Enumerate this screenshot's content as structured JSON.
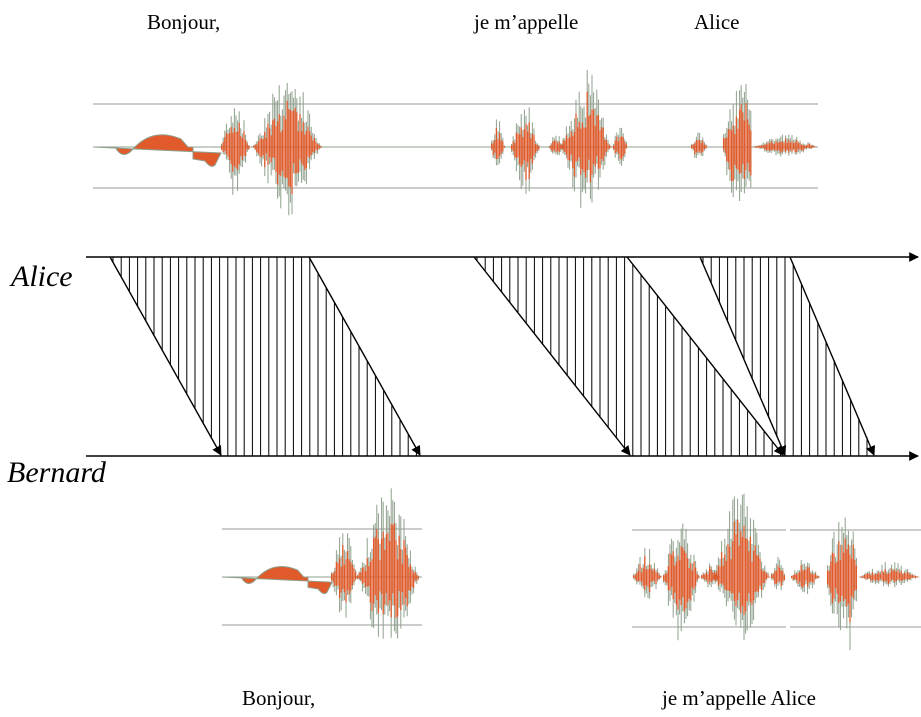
{
  "top_words": [
    "Bonjour,",
    "je m’appelle",
    "Alice"
  ],
  "actors": {
    "sender": "Alice",
    "receiver": "Bernard"
  },
  "bottom_words": [
    "Bonjour,",
    "je m’appelle Alice"
  ],
  "colors": {
    "wave_main": "#e05a2b",
    "wave_envelope": "#8fa08c",
    "guide_lines": "#9a9a9a"
  }
}
